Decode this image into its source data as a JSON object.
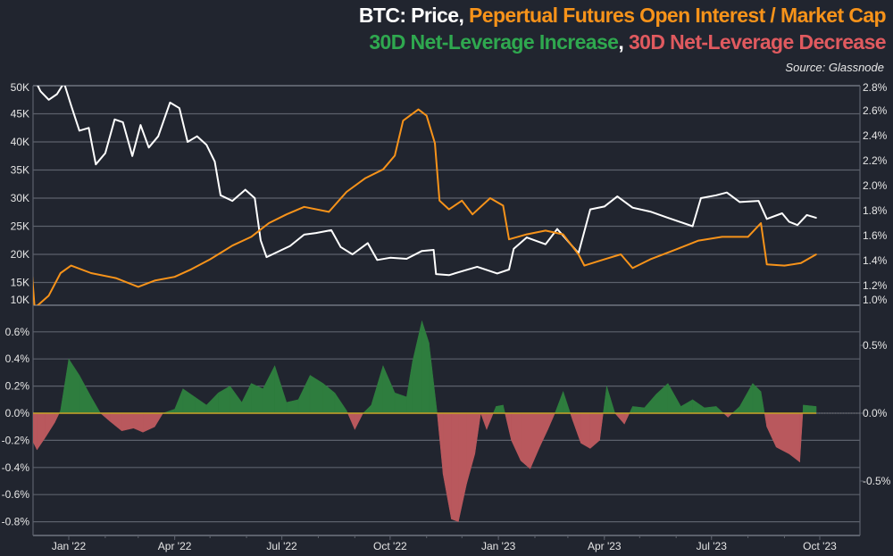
{
  "title": {
    "line1": [
      {
        "text": "BTC: Price",
        "color": "#ffffff"
      },
      {
        "text": ", ",
        "color": "#ffffff"
      },
      {
        "text": "Pepertual Futures Open Interest / Market Cap",
        "color": "#f7931a"
      }
    ],
    "line2": [
      {
        "text": "30D Net-Leverage Increase",
        "color": "#2fa84f"
      },
      {
        "text": ", ",
        "color": "#ffffff"
      },
      {
        "text": "30D Net-Leverage Decrease",
        "color": "#e05a5f"
      }
    ],
    "source": "Source: Glassnode"
  },
  "chart_data": [
    {
      "type": "line",
      "panel": "top",
      "left_axis": {
        "ticks": [
          "10K",
          "15K",
          "20K",
          "25K",
          "30K",
          "35K",
          "40K",
          "45K",
          "50K"
        ],
        "ylim": [
          10000,
          50000
        ]
      },
      "right_axis": {
        "ticks": [
          "1.0%",
          "1.2%",
          "1.4%",
          "1.6%",
          "1.8%",
          "2.0%",
          "2.2%",
          "2.4%",
          "2.6%",
          "2.8%"
        ],
        "ylim": [
          1.0,
          2.8
        ]
      },
      "grid": true,
      "series": [
        {
          "name": "Price",
          "axis": "left",
          "color": "#ffffff",
          "points": [
            [
              "2021-12-01",
              52000
            ],
            [
              "2021-12-08",
              49000
            ],
            [
              "2021-12-15",
              47500
            ],
            [
              "2021-12-22",
              48500
            ],
            [
              "2021-12-28",
              50500
            ],
            [
              "2022-01-03",
              46500
            ],
            [
              "2022-01-10",
              42000
            ],
            [
              "2022-01-18",
              42500
            ],
            [
              "2022-01-24",
              36000
            ],
            [
              "2022-02-01",
              38000
            ],
            [
              "2022-02-09",
              44000
            ],
            [
              "2022-02-16",
              43500
            ],
            [
              "2022-02-24",
              37500
            ],
            [
              "2022-03-03",
              43000
            ],
            [
              "2022-03-10",
              39000
            ],
            [
              "2022-03-18",
              41000
            ],
            [
              "2022-03-28",
              47000
            ],
            [
              "2022-04-05",
              46000
            ],
            [
              "2022-04-12",
              40000
            ],
            [
              "2022-04-20",
              41000
            ],
            [
              "2022-04-28",
              39500
            ],
            [
              "2022-05-05",
              36500
            ],
            [
              "2022-05-10",
              30500
            ],
            [
              "2022-05-20",
              29500
            ],
            [
              "2022-05-31",
              31500
            ],
            [
              "2022-06-08",
              30000
            ],
            [
              "2022-06-13",
              22500
            ],
            [
              "2022-06-18",
              19500
            ],
            [
              "2022-06-28",
              20500
            ],
            [
              "2022-07-08",
              21500
            ],
            [
              "2022-07-20",
              23500
            ],
            [
              "2022-07-30",
              23800
            ],
            [
              "2022-08-12",
              24300
            ],
            [
              "2022-08-20",
              21300
            ],
            [
              "2022-08-30",
              20000
            ],
            [
              "2022-09-12",
              22000
            ],
            [
              "2022-09-20",
              19000
            ],
            [
              "2022-10-01",
              19400
            ],
            [
              "2022-10-15",
              19200
            ],
            [
              "2022-10-28",
              20600
            ],
            [
              "2022-11-07",
              20800
            ],
            [
              "2022-11-09",
              16500
            ],
            [
              "2022-11-20",
              16300
            ],
            [
              "2022-12-01",
              17000
            ],
            [
              "2022-12-14",
              17800
            ],
            [
              "2022-12-31",
              16600
            ],
            [
              "2023-01-10",
              17300
            ],
            [
              "2023-01-14",
              21000
            ],
            [
              "2023-01-25",
              23000
            ],
            [
              "2023-02-10",
              21800
            ],
            [
              "2023-02-20",
              24500
            ],
            [
              "2023-03-10",
              20200
            ],
            [
              "2023-03-20",
              28000
            ],
            [
              "2023-04-01",
              28500
            ],
            [
              "2023-04-12",
              30300
            ],
            [
              "2023-04-25",
              28300
            ],
            [
              "2023-05-10",
              27600
            ],
            [
              "2023-05-25",
              26500
            ],
            [
              "2023-06-15",
              25000
            ],
            [
              "2023-06-22",
              30000
            ],
            [
              "2023-07-05",
              30500
            ],
            [
              "2023-07-14",
              31000
            ],
            [
              "2023-07-25",
              29300
            ],
            [
              "2023-08-10",
              29500
            ],
            [
              "2023-08-17",
              26300
            ],
            [
              "2023-08-30",
              27300
            ],
            [
              "2023-09-05",
              25800
            ],
            [
              "2023-09-12",
              25200
            ],
            [
              "2023-09-20",
              27000
            ],
            [
              "2023-09-28",
              26500
            ]
          ]
        },
        {
          "name": "Pepertual Futures Open Interest / Market Cap",
          "axis": "right",
          "color": "#f7931a",
          "points": [
            [
              "2021-12-01",
              1.27
            ],
            [
              "2021-12-03",
              1.02
            ],
            [
              "2021-12-15",
              1.12
            ],
            [
              "2021-12-25",
              1.3
            ],
            [
              "2022-01-03",
              1.36
            ],
            [
              "2022-01-20",
              1.3
            ],
            [
              "2022-02-10",
              1.26
            ],
            [
              "2022-03-01",
              1.19
            ],
            [
              "2022-03-15",
              1.24
            ],
            [
              "2022-04-01",
              1.27
            ],
            [
              "2022-04-15",
              1.33
            ],
            [
              "2022-05-01",
              1.41
            ],
            [
              "2022-05-20",
              1.52
            ],
            [
              "2022-06-05",
              1.59
            ],
            [
              "2022-06-20",
              1.7
            ],
            [
              "2022-07-05",
              1.77
            ],
            [
              "2022-07-20",
              1.83
            ],
            [
              "2022-08-10",
              1.79
            ],
            [
              "2022-08-25",
              1.95
            ],
            [
              "2022-09-10",
              2.06
            ],
            [
              "2022-09-25",
              2.13
            ],
            [
              "2022-10-05",
              2.24
            ],
            [
              "2022-10-12",
              2.52
            ],
            [
              "2022-10-25",
              2.61
            ],
            [
              "2022-11-01",
              2.56
            ],
            [
              "2022-11-08",
              2.34
            ],
            [
              "2022-11-12",
              1.88
            ],
            [
              "2022-11-20",
              1.81
            ],
            [
              "2022-12-01",
              1.88
            ],
            [
              "2022-12-10",
              1.77
            ],
            [
              "2022-12-25",
              1.9
            ],
            [
              "2023-01-05",
              1.84
            ],
            [
              "2023-01-10",
              1.57
            ],
            [
              "2023-01-25",
              1.61
            ],
            [
              "2023-02-10",
              1.64
            ],
            [
              "2023-02-25",
              1.61
            ],
            [
              "2023-03-10",
              1.45
            ],
            [
              "2023-03-15",
              1.36
            ],
            [
              "2023-04-01",
              1.41
            ],
            [
              "2023-04-15",
              1.45
            ],
            [
              "2023-04-25",
              1.34
            ],
            [
              "2023-05-10",
              1.41
            ],
            [
              "2023-06-01",
              1.49
            ],
            [
              "2023-06-20",
              1.56
            ],
            [
              "2023-07-10",
              1.59
            ],
            [
              "2023-08-01",
              1.59
            ],
            [
              "2023-08-12",
              1.7
            ],
            [
              "2023-08-17",
              1.37
            ],
            [
              "2023-09-01",
              1.36
            ],
            [
              "2023-09-15",
              1.38
            ],
            [
              "2023-09-28",
              1.45
            ]
          ]
        }
      ]
    },
    {
      "type": "area",
      "panel": "bottom",
      "left_axis": {
        "ticks": [
          "-0.8%",
          "-0.6%",
          "-0.4%",
          "-0.2%",
          "0.0%",
          "0.2%",
          "0.4%",
          "0.6%"
        ],
        "ylim": [
          -0.9,
          0.72
        ]
      },
      "right_axis": {
        "ticks": [
          "-0.5%",
          "0.0%",
          "0.5%"
        ]
      },
      "grid": true,
      "positive_color": "#2e7d3e",
      "negative_color": "#b9585d",
      "series": [
        {
          "name": "30D Net-Leverage Increase / Decrease",
          "points": [
            [
              "2021-12-01",
              -0.2
            ],
            [
              "2021-12-05",
              -0.27
            ],
            [
              "2021-12-12",
              -0.18
            ],
            [
              "2021-12-20",
              -0.07
            ],
            [
              "2021-12-25",
              0.02
            ],
            [
              "2022-01-01",
              0.4
            ],
            [
              "2022-01-10",
              0.28
            ],
            [
              "2022-01-20",
              0.12
            ],
            [
              "2022-01-28",
              0.0
            ],
            [
              "2022-02-05",
              -0.06
            ],
            [
              "2022-02-15",
              -0.13
            ],
            [
              "2022-02-25",
              -0.11
            ],
            [
              "2022-03-05",
              -0.14
            ],
            [
              "2022-03-15",
              -0.1
            ],
            [
              "2022-03-22",
              0.0
            ],
            [
              "2022-04-01",
              0.03
            ],
            [
              "2022-04-08",
              0.18
            ],
            [
              "2022-04-18",
              0.12
            ],
            [
              "2022-04-28",
              0.06
            ],
            [
              "2022-05-08",
              0.15
            ],
            [
              "2022-05-18",
              0.2
            ],
            [
              "2022-05-28",
              0.08
            ],
            [
              "2022-06-05",
              0.22
            ],
            [
              "2022-06-15",
              0.18
            ],
            [
              "2022-06-25",
              0.35
            ],
            [
              "2022-07-05",
              0.08
            ],
            [
              "2022-07-15",
              0.1
            ],
            [
              "2022-07-25",
              0.28
            ],
            [
              "2022-08-05",
              0.22
            ],
            [
              "2022-08-15",
              0.15
            ],
            [
              "2022-08-25",
              0.02
            ],
            [
              "2022-09-01",
              -0.12
            ],
            [
              "2022-09-08",
              0.0
            ],
            [
              "2022-09-15",
              0.06
            ],
            [
              "2022-09-25",
              0.35
            ],
            [
              "2022-10-05",
              0.15
            ],
            [
              "2022-10-15",
              0.12
            ],
            [
              "2022-10-20",
              0.38
            ],
            [
              "2022-10-28",
              0.68
            ],
            [
              "2022-11-03",
              0.52
            ],
            [
              "2022-11-10",
              0.0
            ],
            [
              "2022-11-15",
              -0.45
            ],
            [
              "2022-11-22",
              -0.78
            ],
            [
              "2022-11-28",
              -0.8
            ],
            [
              "2022-12-05",
              -0.52
            ],
            [
              "2022-12-12",
              -0.3
            ],
            [
              "2022-12-17",
              0.0
            ],
            [
              "2022-12-22",
              -0.12
            ],
            [
              "2022-12-30",
              0.05
            ],
            [
              "2023-01-05",
              0.06
            ],
            [
              "2023-01-12",
              -0.2
            ],
            [
              "2023-01-20",
              -0.35
            ],
            [
              "2023-01-28",
              -0.41
            ],
            [
              "2023-02-05",
              -0.25
            ],
            [
              "2023-02-12",
              -0.12
            ],
            [
              "2023-02-18",
              0.0
            ],
            [
              "2023-02-25",
              0.16
            ],
            [
              "2023-03-05",
              -0.05
            ],
            [
              "2023-03-12",
              -0.22
            ],
            [
              "2023-03-20",
              -0.26
            ],
            [
              "2023-03-28",
              -0.2
            ],
            [
              "2023-04-03",
              0.2
            ],
            [
              "2023-04-10",
              0.0
            ],
            [
              "2023-04-18",
              -0.08
            ],
            [
              "2023-04-25",
              0.05
            ],
            [
              "2023-05-05",
              0.04
            ],
            [
              "2023-05-15",
              0.14
            ],
            [
              "2023-05-25",
              0.22
            ],
            [
              "2023-06-05",
              0.05
            ],
            [
              "2023-06-15",
              0.1
            ],
            [
              "2023-06-25",
              0.04
            ],
            [
              "2023-07-05",
              0.05
            ],
            [
              "2023-07-15",
              -0.03
            ],
            [
              "2023-07-25",
              0.05
            ],
            [
              "2023-08-05",
              0.22
            ],
            [
              "2023-08-12",
              0.16
            ],
            [
              "2023-08-17",
              -0.1
            ],
            [
              "2023-08-25",
              -0.25
            ],
            [
              "2023-09-05",
              -0.3
            ],
            [
              "2023-09-14",
              -0.36
            ],
            [
              "2023-09-17",
              0.06
            ],
            [
              "2023-09-28",
              0.05
            ]
          ]
        }
      ]
    }
  ],
  "x_axis": {
    "ticks": [
      [
        "2022-01-01",
        "Jan '22"
      ],
      [
        "2022-04-01",
        "Apr '22"
      ],
      [
        "2022-07-01",
        "Jul '22"
      ],
      [
        "2022-10-01",
        "Oct '22"
      ],
      [
        "2023-01-01",
        "Jan '23"
      ],
      [
        "2023-04-01",
        "Apr '23"
      ],
      [
        "2023-07-01",
        "Jul '23"
      ],
      [
        "2023-10-01",
        "Oct '23"
      ]
    ]
  }
}
